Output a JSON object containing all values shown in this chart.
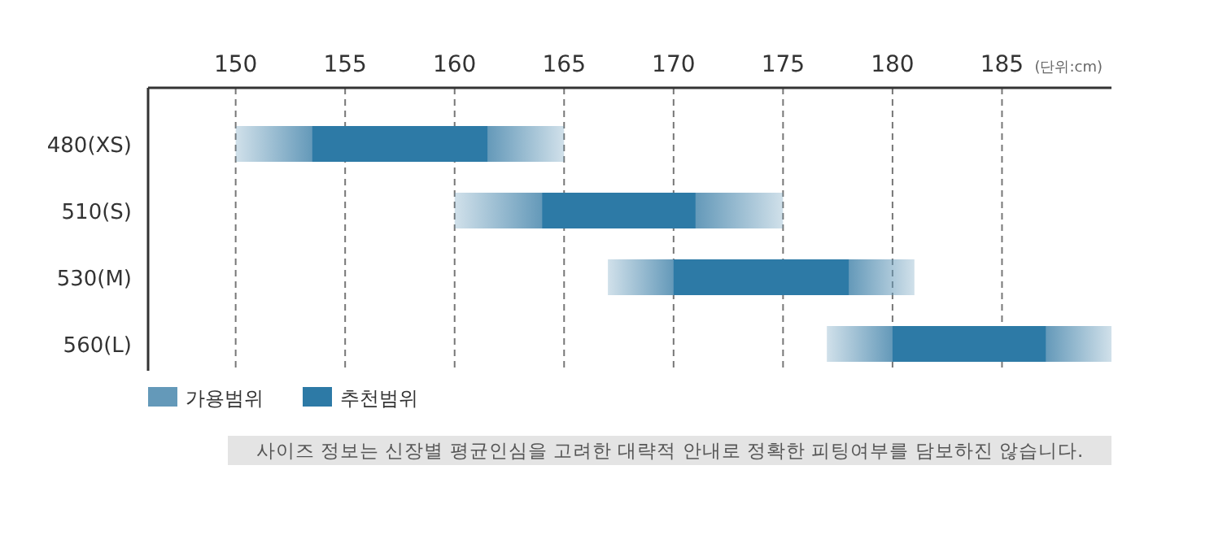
{
  "chart_data": {
    "type": "bar",
    "orientation": "horizontal",
    "categories": [
      "480(XS)",
      "510(S)",
      "530(M)",
      "560(L)"
    ],
    "series": [
      {
        "name": "가용범위",
        "color": "#6499b9",
        "base": [
          150,
          160,
          167,
          177
        ],
        "values": [
          15,
          15,
          14,
          13
        ]
      },
      {
        "name": "추천범위",
        "color": "#2d7aa6",
        "base": [
          153.5,
          164,
          170,
          180
        ],
        "values": [
          8,
          7,
          8,
          7
        ]
      }
    ],
    "xlim": [
      146,
      190
    ],
    "xticks": [
      150,
      155,
      160,
      165,
      170,
      175,
      180,
      185
    ],
    "grid": "x",
    "legend": "bottom left",
    "annotations": [
      "(단위:cm)",
      "사이즈 정보는 신장별 평균인심을 고려한 대략적 안내로 정확한 피팅여부를 담보하진 않습니다."
    ]
  }
}
